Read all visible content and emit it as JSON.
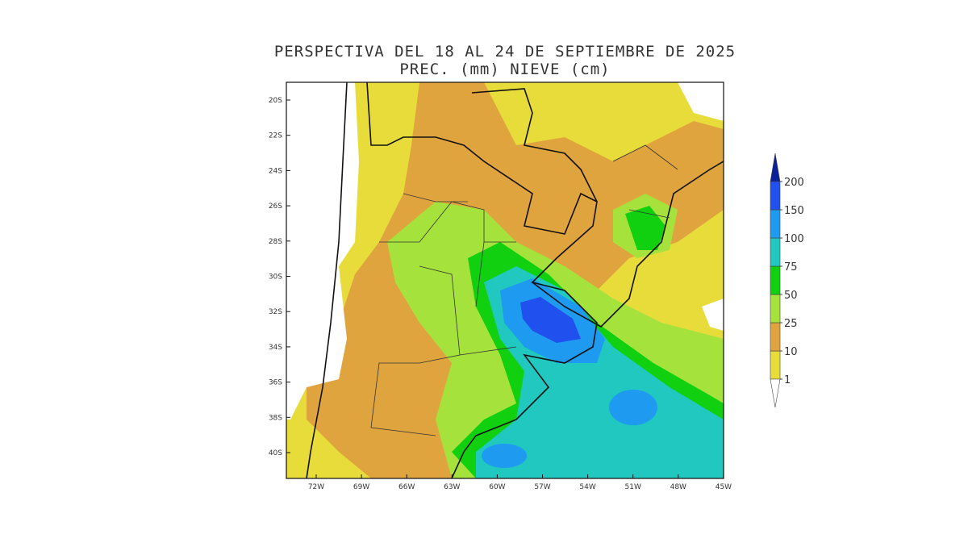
{
  "title": [
    "PERSPECTIVA DEL 18 AL 24 DE SEPTIEMBRE DE 2025",
    "PREC. (mm) NIEVE (cm)"
  ],
  "lat_labels": [
    "20S",
    "22S",
    "24S",
    "26S",
    "28S",
    "30S",
    "32S",
    "34S",
    "36S",
    "38S",
    "40S"
  ],
  "lon_labels": [
    "72W",
    "69W",
    "66W",
    "63W",
    "60W",
    "57W",
    "54W",
    "51W",
    "48W",
    "45W"
  ],
  "legend": {
    "levels": [
      1,
      10,
      25,
      50,
      75,
      100,
      150,
      200
    ],
    "colors": [
      "#ffffff",
      "#e8dc3a",
      "#e0a43e",
      "#a6e23c",
      "#10d010",
      "#20c8c0",
      "#1e9af0",
      "#2050ee",
      "#0a1f9a"
    ]
  }
}
